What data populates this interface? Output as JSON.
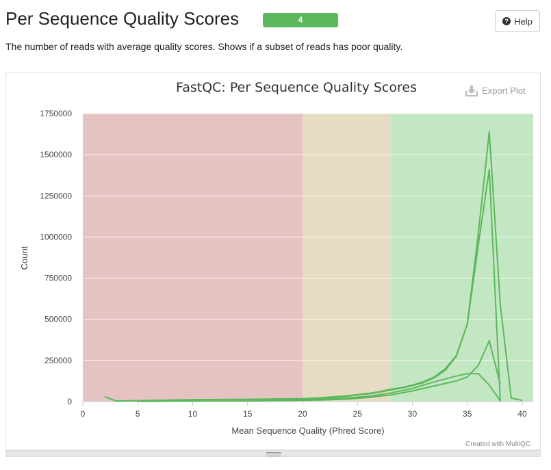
{
  "header": {
    "title": "Per Sequence Quality Scores",
    "badge": "4",
    "help_label": "Help",
    "help_icon": "question-circle-icon",
    "description": "The number of reads with average quality scores. Shows if a subset of reads has poor quality."
  },
  "plot": {
    "export_label": "Export Plot",
    "export_icon": "download-icon",
    "credit": "Created with MultiQC"
  },
  "colors": {
    "badge": "#5cb85c",
    "line": "#5cb85c",
    "zone_fail": "#e6c3c3",
    "zone_warn": "#e6dcc3",
    "zone_pass": "#c3e6c3"
  },
  "chart_data": {
    "type": "line",
    "title": "FastQC: Per Sequence Quality Scores",
    "xlabel": "Mean Sequence Quality (Phred Score)",
    "ylabel": "Count",
    "xlim": [
      0,
      41
    ],
    "ylim": [
      0,
      1750000
    ],
    "xticks": [
      0,
      5,
      10,
      15,
      20,
      25,
      30,
      35,
      40
    ],
    "yticks": [
      0,
      250000,
      500000,
      750000,
      1000000,
      1250000,
      1500000,
      1750000
    ],
    "ytick_labels": [
      "0",
      "250000",
      "500000",
      "750000",
      "1000000",
      "1250000",
      "1500000",
      "1750000"
    ],
    "bands": [
      {
        "from": 0,
        "to": 20,
        "color": "#e6c3c3"
      },
      {
        "from": 20,
        "to": 28,
        "color": "#e6dcc3"
      },
      {
        "from": 28,
        "to": 41,
        "color": "#c3e6c3"
      }
    ],
    "grid": true,
    "series": [
      {
        "x": [
          2,
          3,
          5,
          10,
          15,
          20,
          22,
          24,
          26,
          27,
          28,
          29,
          30,
          31,
          32,
          33,
          34,
          35,
          36,
          37,
          38,
          39,
          40
        ],
        "y": [
          30000,
          4000,
          6000,
          12000,
          14000,
          18000,
          25000,
          35000,
          50000,
          60000,
          75000,
          85000,
          100000,
          120000,
          150000,
          200000,
          280000,
          470000,
          1020000,
          1640000,
          590000,
          22000,
          7000
        ]
      },
      {
        "x": [
          3,
          5,
          10,
          15,
          20,
          22,
          24,
          26,
          27,
          28,
          29,
          30,
          31,
          32,
          33,
          34,
          35,
          36,
          37,
          38
        ],
        "y": [
          2000,
          5000,
          10000,
          12000,
          16000,
          22000,
          32000,
          47000,
          57000,
          70000,
          82000,
          97000,
          115000,
          145000,
          190000,
          275000,
          470000,
          950000,
          1410000,
          0
        ]
      },
      {
        "x": [
          5,
          10,
          15,
          20,
          22,
          24,
          26,
          28,
          30,
          32,
          34,
          35,
          36,
          37,
          38
        ],
        "y": [
          2000,
          5000,
          7000,
          10000,
          15000,
          22000,
          32000,
          52000,
          80000,
          120000,
          155000,
          170000,
          170000,
          100000,
          5000
        ]
      },
      {
        "x": [
          5,
          10,
          15,
          20,
          22,
          24,
          26,
          28,
          30,
          32,
          34,
          35,
          36,
          37,
          38
        ],
        "y": [
          1000,
          3000,
          4000,
          7000,
          10000,
          15000,
          25000,
          40000,
          65000,
          95000,
          125000,
          150000,
          220000,
          370000,
          105000
        ]
      }
    ]
  }
}
